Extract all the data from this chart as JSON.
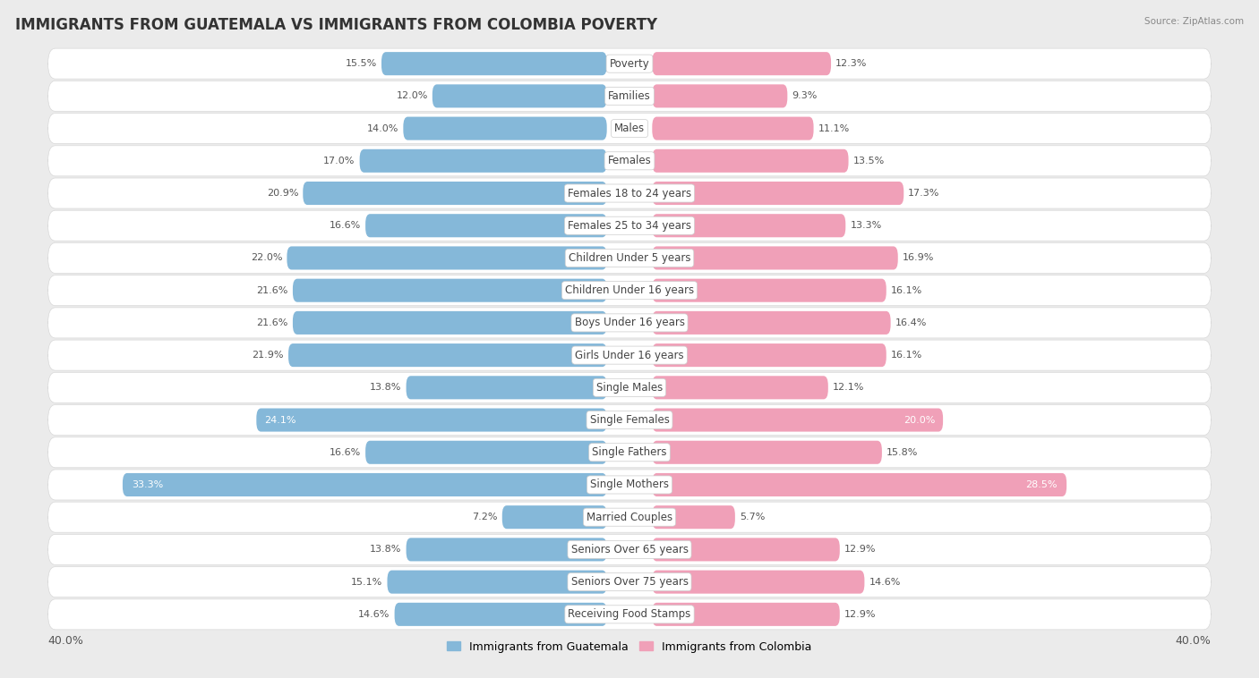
{
  "title": "IMMIGRANTS FROM GUATEMALA VS IMMIGRANTS FROM COLOMBIA POVERTY",
  "source": "Source: ZipAtlas.com",
  "categories": [
    "Poverty",
    "Families",
    "Males",
    "Females",
    "Females 18 to 24 years",
    "Females 25 to 34 years",
    "Children Under 5 years",
    "Children Under 16 years",
    "Boys Under 16 years",
    "Girls Under 16 years",
    "Single Males",
    "Single Females",
    "Single Fathers",
    "Single Mothers",
    "Married Couples",
    "Seniors Over 65 years",
    "Seniors Over 75 years",
    "Receiving Food Stamps"
  ],
  "guatemala_values": [
    15.5,
    12.0,
    14.0,
    17.0,
    20.9,
    16.6,
    22.0,
    21.6,
    21.6,
    21.9,
    13.8,
    24.1,
    16.6,
    33.3,
    7.2,
    13.8,
    15.1,
    14.6
  ],
  "colombia_values": [
    12.3,
    9.3,
    11.1,
    13.5,
    17.3,
    13.3,
    16.9,
    16.1,
    16.4,
    16.1,
    12.1,
    20.0,
    15.8,
    28.5,
    5.7,
    12.9,
    14.6,
    12.9
  ],
  "guatemala_color": "#85b8d9",
  "colombia_color": "#f0a0b8",
  "guatemala_label": "Immigrants from Guatemala",
  "colombia_label": "Immigrants from Colombia",
  "xlim": 40.0,
  "background_color": "#ebebeb",
  "title_fontsize": 12,
  "label_fontsize": 8.5,
  "value_fontsize": 8,
  "axis_label_fontsize": 9
}
